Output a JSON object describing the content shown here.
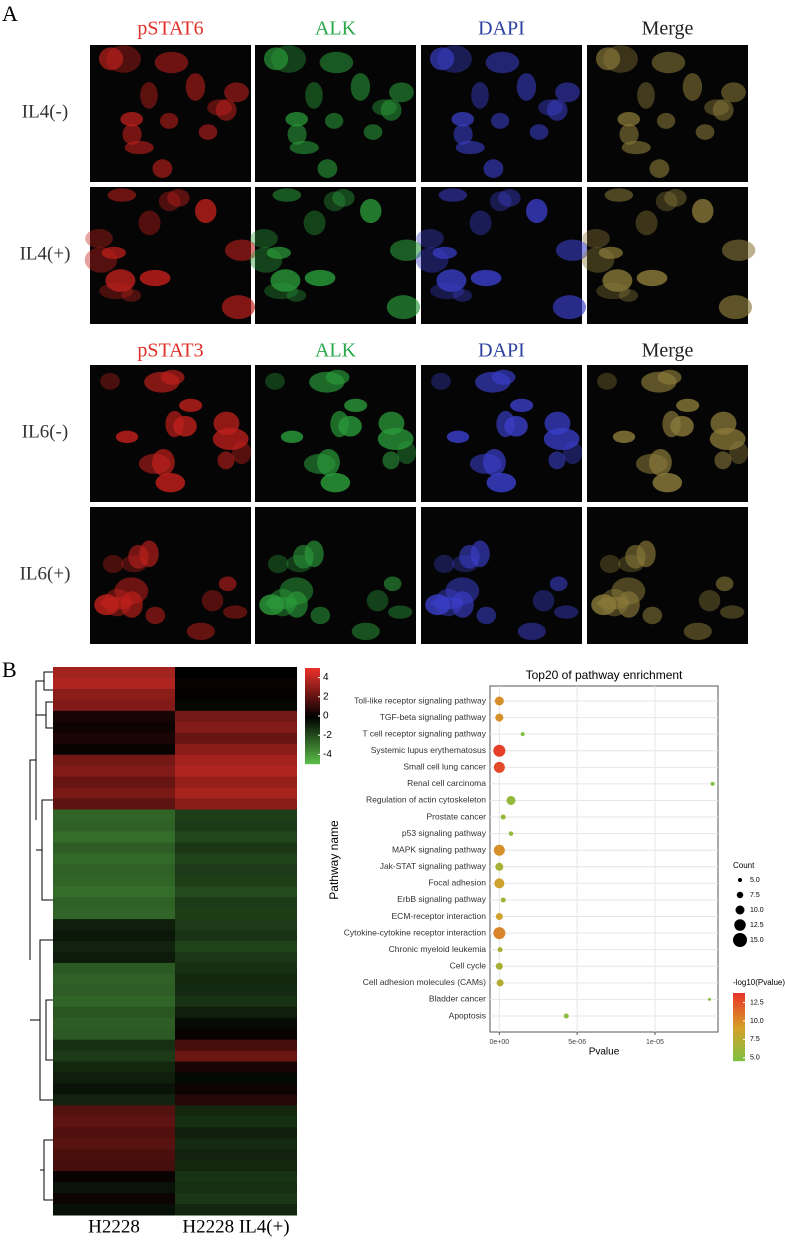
{
  "panel_a": {
    "label": "A",
    "channel_colors": [
      "#e0302a",
      "#2aa84a",
      "#2b3fa0",
      "#222222"
    ],
    "groups": [
      {
        "channels": [
          "pSTAT6",
          "ALK",
          "DAPI",
          "Merge"
        ],
        "rows": [
          "IL4(-)",
          "IL4(+)"
        ]
      },
      {
        "channels": [
          "pSTAT3",
          "ALK",
          "DAPI",
          "Merge"
        ],
        "rows": [
          "IL6(-)",
          "IL6(+)"
        ]
      }
    ]
  },
  "panel_b_label": "B",
  "chart_data": [
    {
      "type": "heatmap",
      "categories": [
        "H2228",
        "H2228 IL4(+)"
      ],
      "values": [
        [
          3.5,
          0
        ],
        [
          3.8,
          0.2
        ],
        [
          3,
          0.1
        ],
        [
          2.8,
          -0.2
        ],
        [
          0.5,
          2.5
        ],
        [
          0.3,
          2.8
        ],
        [
          0.6,
          2.2
        ],
        [
          0.2,
          3
        ],
        [
          2.5,
          3.5
        ],
        [
          2.8,
          3.8
        ],
        [
          2.2,
          3.2
        ],
        [
          2.6,
          3.6
        ],
        [
          2,
          3
        ],
        [
          -2.6,
          -1.6
        ],
        [
          -2.5,
          -1.5
        ],
        [
          -2.8,
          -1.8
        ],
        [
          -2.4,
          -1.4
        ],
        [
          -2.7,
          -1.7
        ],
        [
          -2.5,
          -1.5
        ],
        [
          -2.6,
          -1.6
        ],
        [
          -2.8,
          -1.9
        ],
        [
          -2.5,
          -1.5
        ],
        [
          -2.6,
          -1.6
        ],
        [
          -0.8,
          -1.5
        ],
        [
          -0.6,
          -1.3
        ],
        [
          -0.9,
          -1.7
        ],
        [
          -0.7,
          -1.4
        ],
        [
          -2.3,
          -1.2
        ],
        [
          -2.5,
          -1
        ],
        [
          -2.4,
          -1.1
        ],
        [
          -2.6,
          -1.3
        ],
        [
          -2.2,
          -0.8
        ],
        [
          -2.4,
          -0.3
        ],
        [
          -2.3,
          0.2
        ],
        [
          -1.2,
          1.5
        ],
        [
          -1.5,
          2.3
        ],
        [
          -1,
          0.5
        ],
        [
          -0.8,
          -0.2
        ],
        [
          -0.5,
          0.3
        ],
        [
          -0.9,
          0.8
        ],
        [
          1.8,
          -1
        ],
        [
          2,
          -1.2
        ],
        [
          1.7,
          -0.8
        ],
        [
          1.9,
          -1.1
        ],
        [
          1.6,
          -0.9
        ],
        [
          1.5,
          -1
        ],
        [
          0.2,
          -1.3
        ],
        [
          -0.5,
          -1.2
        ],
        [
          0.3,
          -1.4
        ],
        [
          -0.4,
          -1
        ]
      ],
      "zlim": [
        -5,
        5
      ],
      "colorbar_ticks": [
        4,
        2,
        0,
        -2,
        -4
      ],
      "colors": [
        "#5dc24b",
        "#000000",
        "#e8302a"
      ]
    },
    {
      "type": "scatter",
      "title": "Top20 of pathway enrichment",
      "x_label": "Pvalue",
      "y_label": "Pathway name",
      "categories": [
        "Toll-like receptor signaling pathway",
        "TGF-beta signaling pathway",
        "T cell receptor signaling pathway",
        "Systemic lupus erythematosus",
        "Small cell lung cancer",
        "Renal cell carcinoma",
        "Regulation of actin cytoskeleton",
        "Prostate cancer",
        "p53 signaling pathway",
        "MAPK signaling pathway",
        "Jak-STAT signaling pathway",
        "Focal adhesion",
        "ErbB signaling pathway",
        "ECM-receptor interaction",
        "Cytokine-cytokine receptor interaction",
        "Chronic myeloid leukemia",
        "Cell cycle",
        "Cell adhesion molecules (CAMs)",
        "Bladder cancer",
        "Apoptosis"
      ],
      "x": [
        0,
        0,
        1.5e-06,
        0,
        0,
        1.37e-05,
        7.5e-07,
        2.5e-07,
        7.5e-07,
        0,
        0,
        0,
        2.5e-07,
        0,
        0,
        5e-08,
        0,
        5e-08,
        1.35e-05,
        4.3e-06
      ],
      "size": [
        10,
        9,
        5,
        13,
        12,
        5,
        10,
        6,
        5.5,
        12,
        9,
        11,
        6,
        8,
        13,
        6,
        8,
        8,
        4,
        6
      ],
      "color_values": [
        10,
        10,
        5,
        13.5,
        13,
        5,
        6,
        6,
        6,
        10,
        7,
        9,
        6.5,
        9,
        10.5,
        7,
        7,
        7.5,
        5,
        5.5
      ],
      "xlim": [
        -6e-07,
        1.405e-05
      ],
      "xticks": [
        {
          "value": 0,
          "label": "0e+00"
        },
        {
          "value": 5e-06,
          "label": "5e-06"
        },
        {
          "value": 1e-05,
          "label": "1e-05"
        }
      ],
      "grid": true,
      "size_legend": {
        "title": "Count",
        "ticks": [
          {
            "value": 5,
            "label": "5.0"
          },
          7.5,
          {
            "value": 10,
            "label": "10.0"
          },
          12.5,
          {
            "value": 15,
            "label": "15.0"
          }
        ]
      },
      "color_legend": {
        "title": "-log10(Pvalue)",
        "ticks": [
          12.5,
          {
            "value": 10,
            "label": "10.0"
          },
          7.5,
          {
            "value": 5,
            "label": "5.0"
          }
        ],
        "clim": [
          4.7,
          13.8
        ],
        "colors": [
          "#7cc242",
          "#d4a02a",
          "#e8372a"
        ]
      }
    }
  ]
}
